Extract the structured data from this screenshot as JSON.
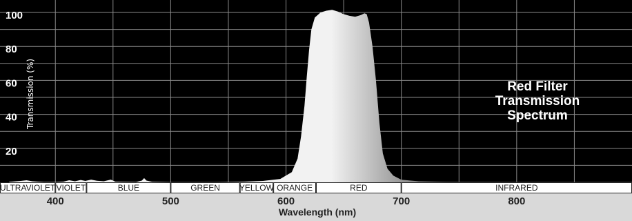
{
  "chart_data": {
    "type": "area",
    "ylabel": "Transmission (%)",
    "xlabel": "Wavelength (nm)",
    "annotation": [
      "Red Filter",
      "Transmission",
      "Spectrum"
    ],
    "y_ticks": [
      "20",
      "40",
      "60",
      "80",
      "100"
    ],
    "x_ticks": [
      "400",
      "500",
      "600",
      "700",
      "800"
    ],
    "xlim": [
      352,
      900
    ],
    "ylim": [
      0,
      100
    ],
    "grid": true,
    "colors": {
      "plot_background": "#000000",
      "grid": "#8a8a8a",
      "fill_light": "#f2f2f2",
      "fill_dark": "#666666",
      "axis_strip": "#d9d9d9",
      "text_dark": "#222222"
    },
    "bands": [
      {
        "label": "ULTRAVIOLET",
        "from": 352,
        "to": 400
      },
      {
        "label": "VIOLET",
        "from": 400,
        "to": 427
      },
      {
        "label": "BLUE",
        "from": 427,
        "to": 500
      },
      {
        "label": "GREEN",
        "from": 500,
        "to": 560
      },
      {
        "label": "YELLOW",
        "from": 560,
        "to": 589
      },
      {
        "label": "ORANGE",
        "from": 589,
        "to": 626
      },
      {
        "label": "RED",
        "from": 626,
        "to": 700
      },
      {
        "label": "INFRARED",
        "from": 700,
        "to": 900
      }
    ],
    "series": [
      {
        "values": [
          [
            360,
            0.3
          ],
          [
            370,
            0.8
          ],
          [
            375,
            1.2
          ],
          [
            380,
            0.6
          ],
          [
            390,
            0.2
          ],
          [
            400,
            0.2
          ],
          [
            407,
            0.4
          ],
          [
            412,
            1.2
          ],
          [
            417,
            0.6
          ],
          [
            422,
            1.4
          ],
          [
            426,
            0.8
          ],
          [
            431,
            1.6
          ],
          [
            436,
            0.9
          ],
          [
            442,
            0.6
          ],
          [
            448,
            1.6
          ],
          [
            452,
            0.4
          ],
          [
            458,
            0.3
          ],
          [
            470,
            0.2
          ],
          [
            475,
            1.0
          ],
          [
            477,
            2.5
          ],
          [
            479,
            1.0
          ],
          [
            484,
            0.3
          ],
          [
            500,
            0.1
          ],
          [
            540,
            0.1
          ],
          [
            560,
            0.3
          ],
          [
            580,
            0.8
          ],
          [
            595,
            2.0
          ],
          [
            605,
            6.0
          ],
          [
            610,
            14.0
          ],
          [
            613,
            27.0
          ],
          [
            616,
            45.0
          ],
          [
            618,
            62.0
          ],
          [
            620,
            78.0
          ],
          [
            622,
            90.0
          ],
          [
            625,
            97.0
          ],
          [
            630,
            100.0
          ],
          [
            635,
            101.0
          ],
          [
            640,
            101.5
          ],
          [
            645,
            100.5
          ],
          [
            650,
            99.0
          ],
          [
            655,
            98.0
          ],
          [
            660,
            97.5
          ],
          [
            665,
            98.5
          ],
          [
            668,
            99.5
          ],
          [
            670,
            99.0
          ],
          [
            672,
            94.0
          ],
          [
            675,
            80.0
          ],
          [
            678,
            60.0
          ],
          [
            681,
            35.0
          ],
          [
            684,
            17.0
          ],
          [
            688,
            8.0
          ],
          [
            693,
            4.0
          ],
          [
            700,
            1.5
          ],
          [
            715,
            0.6
          ],
          [
            740,
            0.3
          ],
          [
            800,
            0.2
          ],
          [
            900,
            0.2
          ]
        ]
      }
    ]
  }
}
